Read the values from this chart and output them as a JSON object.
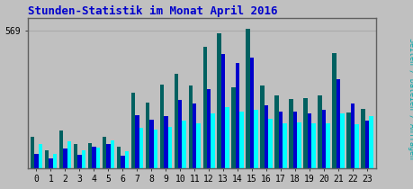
{
  "title": "Stunden-Statistik im Monat April 2016",
  "ytick_label": "569",
  "background_color": "#c0c0c0",
  "plot_bg_color": "#c0c0c0",
  "bar_color_green": "#006060",
  "bar_color_blue": "#0000cc",
  "bar_color_cyan": "#00ffff",
  "title_color": "#0000cc",
  "right_label": "Seiten / Dateien / Anfragen",
  "right_label_color": "#00aaaa",
  "hours": [
    0,
    1,
    2,
    3,
    4,
    5,
    6,
    7,
    8,
    9,
    10,
    11,
    12,
    13,
    14,
    15,
    16,
    17,
    18,
    19,
    20,
    21,
    22,
    23
  ],
  "seiten": [
    130,
    75,
    155,
    100,
    105,
    130,
    90,
    310,
    270,
    345,
    390,
    340,
    500,
    555,
    335,
    575,
    340,
    300,
    285,
    290,
    300,
    475,
    230,
    245
  ],
  "dateien": [
    60,
    40,
    80,
    55,
    90,
    100,
    50,
    220,
    200,
    215,
    280,
    265,
    325,
    470,
    435,
    455,
    260,
    235,
    235,
    225,
    240,
    365,
    265,
    195
  ],
  "anfragen": [
    100,
    60,
    110,
    75,
    85,
    115,
    70,
    165,
    160,
    170,
    195,
    185,
    225,
    250,
    235,
    240,
    205,
    185,
    190,
    185,
    185,
    225,
    180,
    215
  ],
  "ylim": [
    0,
    620
  ],
  "yticks": [
    569
  ],
  "border_color": "#606060",
  "grid_color": "#aaaaaa",
  "tick_fontsize": 7,
  "title_fontsize": 9
}
